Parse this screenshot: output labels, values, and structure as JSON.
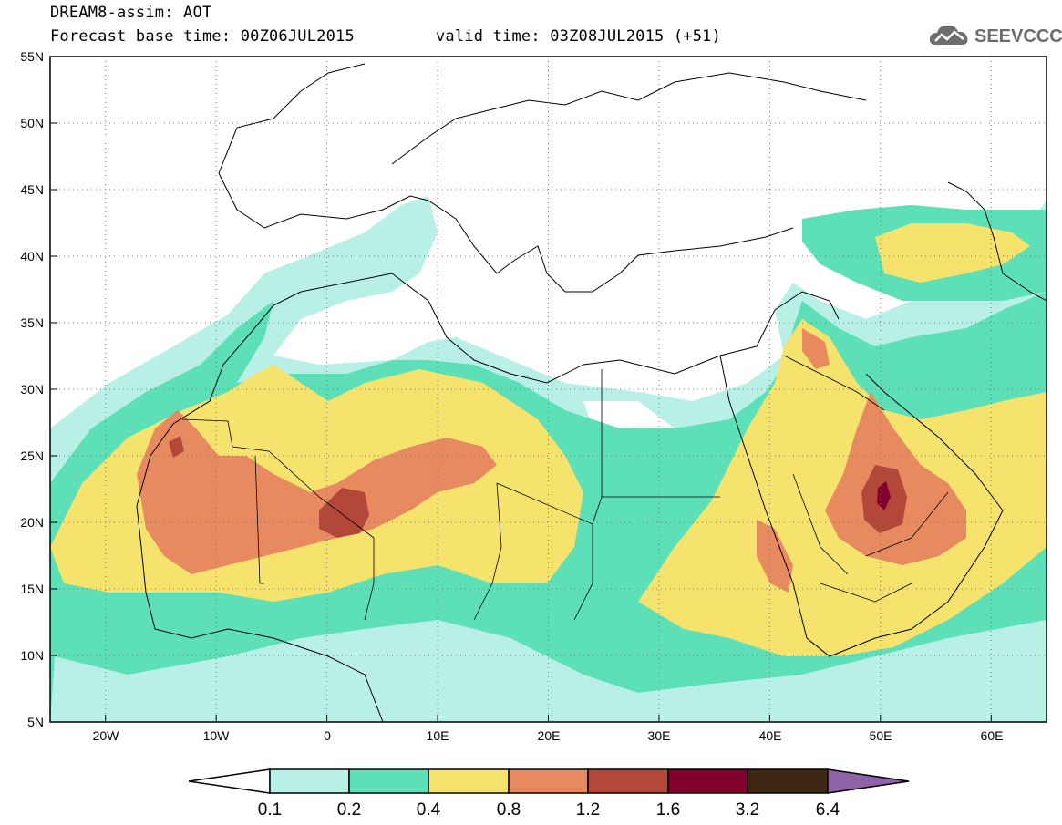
{
  "header": {
    "line1": "DREAM8-assim: AOT",
    "line2": "Forecast base time: 00Z06JUL2015",
    "line3": "valid time: 03Z08JUL2015 (+51)"
  },
  "logo": {
    "text": "SEEVCCC",
    "icon": "cloud-icon"
  },
  "map": {
    "lat_ticks": [
      "55N",
      "50N",
      "45N",
      "40N",
      "35N",
      "30N",
      "25N",
      "20N",
      "15N",
      "10N",
      "5N"
    ],
    "lon_ticks": [
      "20W",
      "10W",
      "0",
      "10E",
      "20E",
      "30E",
      "40E",
      "50E",
      "60E"
    ],
    "lon_range": [
      -25,
      65
    ],
    "lat_range": [
      5,
      55
    ],
    "grid": "dotted"
  },
  "colorbar": {
    "labels": [
      "0.1",
      "0.2",
      "0.4",
      "0.8",
      "1.2",
      "1.6",
      "3.2",
      "6.4"
    ],
    "colors": [
      "#ffffff",
      "#b9f0e6",
      "#5de0b7",
      "#f5e36e",
      "#e88a5f",
      "#b3483a",
      "#82002e",
      "#3d2713",
      "#8e63a8"
    ]
  }
}
